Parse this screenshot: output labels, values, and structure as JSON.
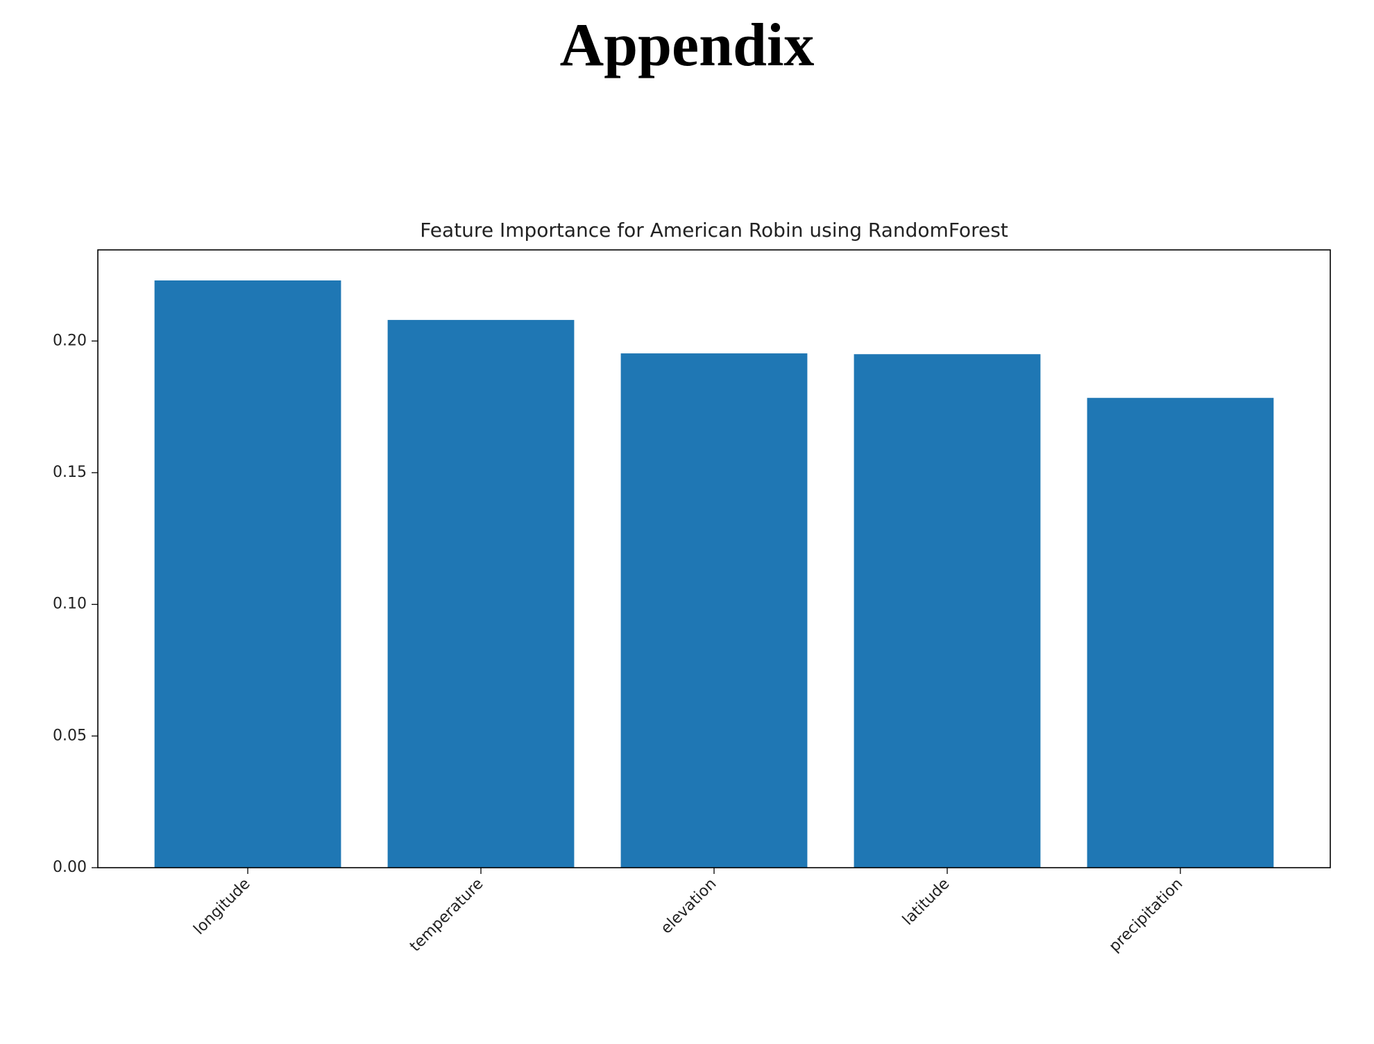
{
  "heading": "Appendix",
  "chart_data": {
    "type": "bar",
    "title": "Feature Importance for American Robin using RandomForest",
    "categories": [
      "longitude",
      "temperature",
      "elevation",
      "latitude",
      "precipitation"
    ],
    "values": [
      0.223,
      0.208,
      0.1953,
      0.195,
      0.1784
    ],
    "color": "#1f77b4",
    "ylim": [
      0,
      0.2346
    ],
    "yticks": [
      {
        "value": 0,
        "label": "0.00"
      },
      {
        "value": 0.05,
        "label": "0.05"
      },
      {
        "value": 0.1,
        "label": "0.10"
      },
      {
        "value": 0.15,
        "label": "0.15"
      },
      {
        "value": 0.2,
        "label": "0.20"
      }
    ],
    "grid": false
  }
}
